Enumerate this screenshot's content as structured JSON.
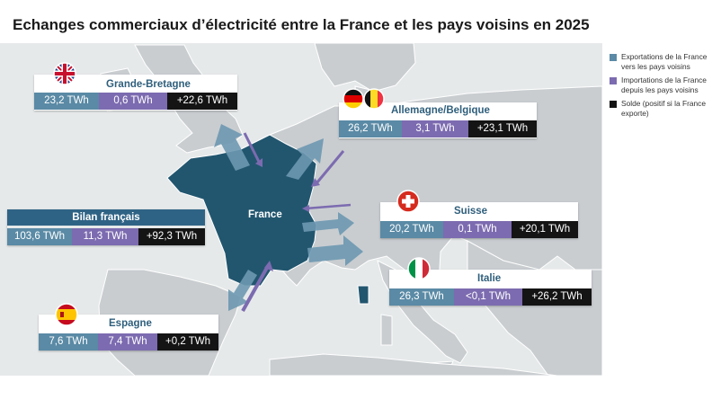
{
  "title": "Echanges commerciaux d’électricité entre la France et les pays voisins en 2025",
  "colors": {
    "exports": "#5a8aa5",
    "imports": "#7c6bb0",
    "balance": "#141414",
    "france": "#22566f",
    "land": "#c9cdd0",
    "sea": "#e6e9ea"
  },
  "map": {
    "france_label": "France"
  },
  "legend": {
    "exports": "Exportations de la France vers les pays voisins",
    "imports": "Importations de la France depuis les pays voisins",
    "balance": "Solde (positif si la France exporte)"
  },
  "bilan": {
    "label": "Bilan français",
    "exports": "103,6 TWh",
    "imports": "11,3 TWh",
    "balance": "+92,3 TWh"
  },
  "partners": {
    "gb": {
      "name": "Grande-Bretagne",
      "exports": "23,2 TWh",
      "imports": "0,6 TWh",
      "balance": "+22,6 TWh",
      "flag": "uk-flag-icon"
    },
    "de": {
      "name": "Allemagne/Belgique",
      "exports": "26,2 TWh",
      "imports": "3,1 TWh",
      "balance": "+23,1 TWh",
      "flag": "germany-belgium-flag-icon"
    },
    "ch": {
      "name": "Suisse",
      "exports": "20,2 TWh",
      "imports": "0,1 TWh",
      "balance": "+20,1 TWh",
      "flag": "swiss-flag-icon"
    },
    "it": {
      "name": "Italie",
      "exports": "26,3 TWh",
      "imports": "<0,1 TWh",
      "balance": "+26,2 TWh",
      "flag": "italy-flag-icon"
    },
    "es": {
      "name": "Espagne",
      "exports": "7,6 TWh",
      "imports": "7,4 TWh",
      "balance": "+0,2 TWh",
      "flag": "spain-flag-icon"
    }
  }
}
